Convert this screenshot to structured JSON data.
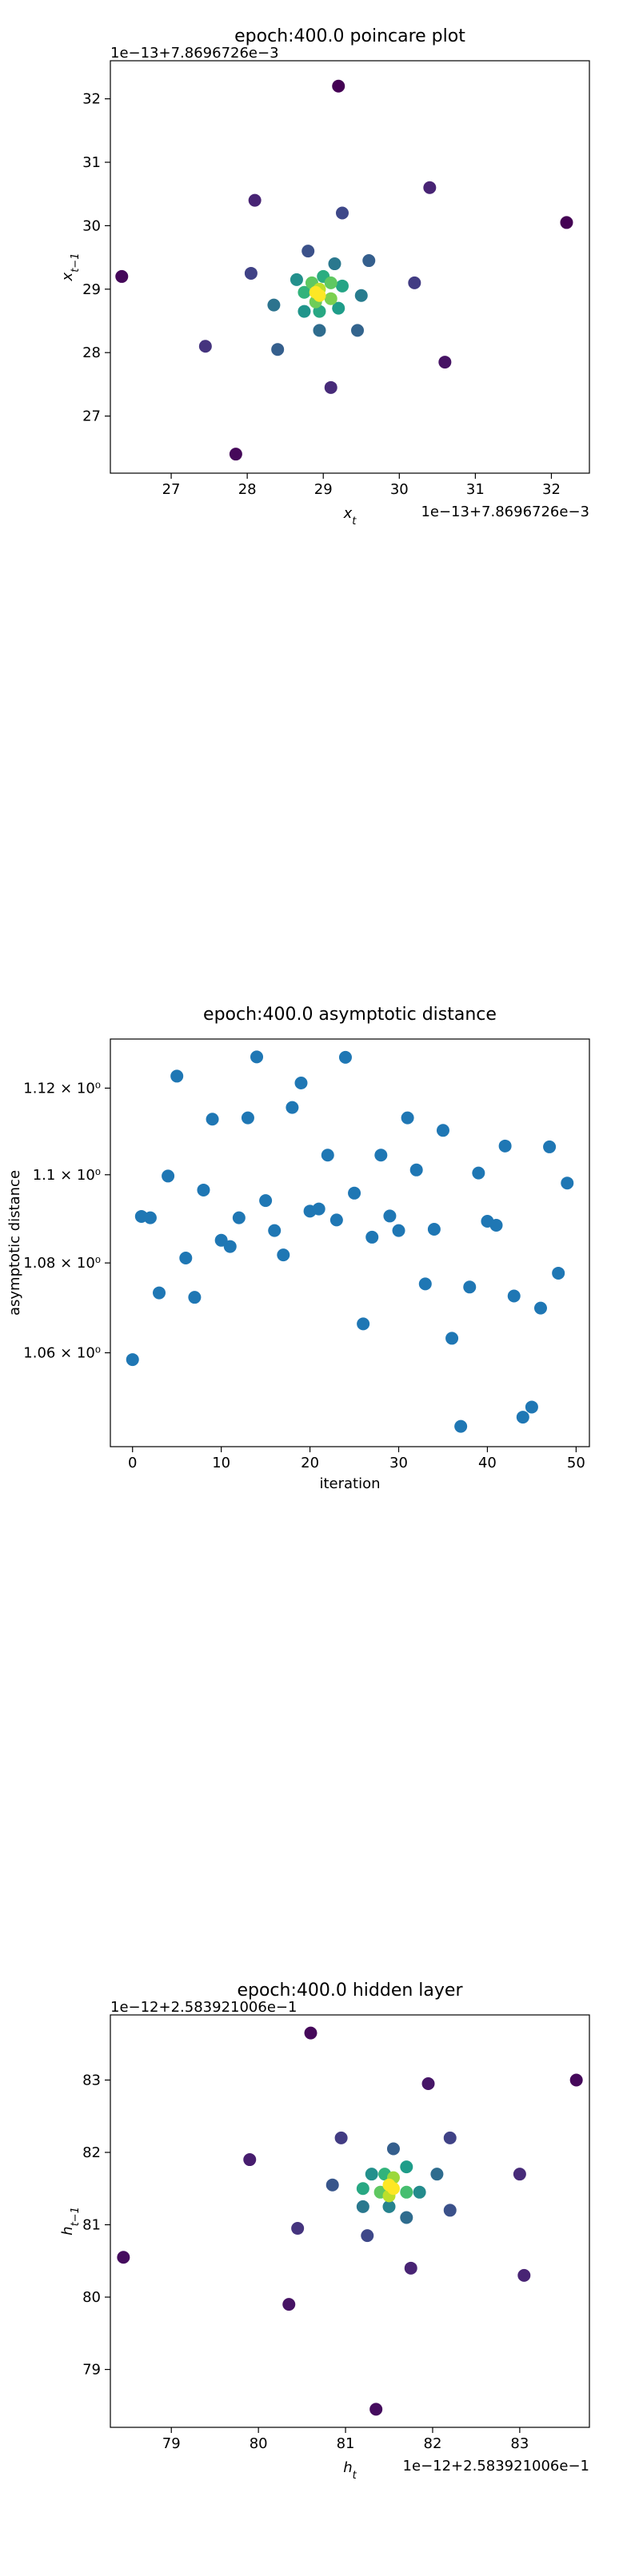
{
  "chart_data": [
    {
      "type": "scatter",
      "title": "epoch:400.0 poincare plot",
      "xlabel": "x_t",
      "ylabel": "x_{t−1}",
      "offset_x_text": "1e−13+7.8696726e−3",
      "offset_y_text": "1e−13+7.8696726e−3",
      "xlim": [
        26.2,
        32.5
      ],
      "ylim": [
        26.1,
        32.6
      ],
      "xticks": [
        27,
        28,
        29,
        30,
        31,
        32
      ],
      "yticks": [
        27,
        28,
        29,
        30,
        31,
        32
      ],
      "color_scale": "viridis (point density)",
      "points": [
        {
          "x": 29.2,
          "y": 32.2,
          "c": 0.0
        },
        {
          "x": 32.2,
          "y": 30.05,
          "c": 0.0
        },
        {
          "x": 26.35,
          "y": 29.2,
          "c": 0.02
        },
        {
          "x": 27.85,
          "y": 26.4,
          "c": 0.02
        },
        {
          "x": 30.6,
          "y": 27.85,
          "c": 0.05
        },
        {
          "x": 28.1,
          "y": 30.4,
          "c": 0.1
        },
        {
          "x": 30.4,
          "y": 30.6,
          "c": 0.1
        },
        {
          "x": 29.1,
          "y": 27.45,
          "c": 0.12
        },
        {
          "x": 27.45,
          "y": 28.1,
          "c": 0.15
        },
        {
          "x": 30.2,
          "y": 29.1,
          "c": 0.18
        },
        {
          "x": 28.05,
          "y": 29.25,
          "c": 0.2
        },
        {
          "x": 29.25,
          "y": 30.2,
          "c": 0.22
        },
        {
          "x": 28.8,
          "y": 29.6,
          "c": 0.25
        },
        {
          "x": 29.6,
          "y": 29.45,
          "c": 0.3
        },
        {
          "x": 28.4,
          "y": 28.05,
          "c": 0.3
        },
        {
          "x": 29.45,
          "y": 28.35,
          "c": 0.32
        },
        {
          "x": 28.95,
          "y": 28.35,
          "c": 0.35
        },
        {
          "x": 28.35,
          "y": 28.75,
          "c": 0.38
        },
        {
          "x": 29.15,
          "y": 29.4,
          "c": 0.4
        },
        {
          "x": 29.5,
          "y": 28.9,
          "c": 0.42
        },
        {
          "x": 28.65,
          "y": 29.15,
          "c": 0.5
        },
        {
          "x": 28.75,
          "y": 28.65,
          "c": 0.52
        },
        {
          "x": 29.2,
          "y": 28.7,
          "c": 0.55
        },
        {
          "x": 29.25,
          "y": 29.05,
          "c": 0.58
        },
        {
          "x": 28.95,
          "y": 28.65,
          "c": 0.6
        },
        {
          "x": 29.0,
          "y": 29.2,
          "c": 0.62
        },
        {
          "x": 28.75,
          "y": 28.95,
          "c": 0.65
        },
        {
          "x": 28.85,
          "y": 29.1,
          "c": 0.75
        },
        {
          "x": 29.1,
          "y": 29.1,
          "c": 0.75
        },
        {
          "x": 28.9,
          "y": 28.8,
          "c": 0.78
        },
        {
          "x": 29.1,
          "y": 28.85,
          "c": 0.8
        },
        {
          "x": 28.95,
          "y": 29.0,
          "c": 0.9
        },
        {
          "x": 28.9,
          "y": 28.95,
          "c": 1.0
        },
        {
          "x": 28.95,
          "y": 28.9,
          "c": 1.0
        }
      ]
    },
    {
      "type": "scatter",
      "title": "epoch:400.0 asymptotic distance",
      "xlabel": "iteration",
      "ylabel": "asymptotic distance",
      "yscale": "log",
      "xlim": [
        -2.5,
        51.5
      ],
      "ylim": [
        1.0395,
        1.1315
      ],
      "xticks": [
        0,
        10,
        20,
        30,
        40,
        50
      ],
      "yticks": [
        {
          "value": 1.06,
          "label": "1.06 × 10⁰"
        },
        {
          "value": 1.08,
          "label": "1.08 × 10⁰"
        },
        {
          "value": 1.1,
          "label": "1.1 × 10⁰"
        },
        {
          "value": 1.12,
          "label": "1.12 × 10⁰"
        }
      ],
      "color": "#1f77b4",
      "x": [
        0,
        1,
        2,
        3,
        4,
        5,
        6,
        7,
        8,
        9,
        10,
        11,
        12,
        13,
        14,
        15,
        16,
        17,
        18,
        19,
        20,
        21,
        22,
        23,
        24,
        25,
        26,
        27,
        28,
        29,
        30,
        31,
        32,
        33,
        34,
        35,
        36,
        37,
        38,
        39,
        40,
        41,
        42,
        43,
        44,
        45,
        46,
        47,
        48,
        49
      ],
      "y": [
        1.0585,
        1.0905,
        1.0902,
        1.0733,
        1.0997,
        1.1228,
        1.0811,
        1.0723,
        1.0965,
        1.1128,
        1.0851,
        1.0837,
        1.0902,
        1.1131,
        1.1273,
        1.0941,
        1.0873,
        1.0818,
        1.1155,
        1.1212,
        1.0917,
        1.0922,
        1.1045,
        1.0897,
        1.1272,
        1.0958,
        1.0664,
        1.0858,
        1.1045,
        1.0906,
        1.0873,
        1.1131,
        1.1011,
        1.0753,
        1.0876,
        1.1102,
        1.0632,
        1.0439,
        1.0746,
        1.1004,
        1.0894,
        1.0885,
        1.1066,
        1.0726,
        1.0459,
        1.0481,
        1.0699,
        1.1064,
        1.0777,
        1.0981
      ]
    },
    {
      "type": "scatter",
      "title": "epoch:400.0 hidden layer",
      "xlabel": "h_t",
      "ylabel": "h_{t−1}",
      "offset_x_text": "1e−12+2.583921006e−1",
      "offset_y_text": "1e−12+2.583921006e−1",
      "xlim": [
        78.3,
        83.8
      ],
      "ylim": [
        78.2,
        83.9
      ],
      "xticks": [
        79,
        80,
        81,
        82,
        83
      ],
      "yticks": [
        79,
        80,
        81,
        82,
        83
      ],
      "color_scale": "viridis (point density)",
      "points": [
        {
          "x": 80.6,
          "y": 83.65,
          "c": 0.02
        },
        {
          "x": 83.65,
          "y": 83.0,
          "c": 0.02
        },
        {
          "x": 78.45,
          "y": 80.55,
          "c": 0.03
        },
        {
          "x": 81.35,
          "y": 78.45,
          "c": 0.03
        },
        {
          "x": 80.35,
          "y": 79.9,
          "c": 0.05
        },
        {
          "x": 81.95,
          "y": 82.95,
          "c": 0.06
        },
        {
          "x": 79.9,
          "y": 81.9,
          "c": 0.08
        },
        {
          "x": 81.75,
          "y": 80.4,
          "c": 0.1
        },
        {
          "x": 83.05,
          "y": 80.3,
          "c": 0.1
        },
        {
          "x": 83.0,
          "y": 81.7,
          "c": 0.12
        },
        {
          "x": 80.45,
          "y": 80.95,
          "c": 0.15
        },
        {
          "x": 80.95,
          "y": 82.2,
          "c": 0.18
        },
        {
          "x": 82.2,
          "y": 82.2,
          "c": 0.2
        },
        {
          "x": 81.25,
          "y": 80.85,
          "c": 0.22
        },
        {
          "x": 82.2,
          "y": 81.2,
          "c": 0.25
        },
        {
          "x": 80.85,
          "y": 81.55,
          "c": 0.27
        },
        {
          "x": 81.55,
          "y": 82.05,
          "c": 0.3
        },
        {
          "x": 81.7,
          "y": 81.1,
          "c": 0.35
        },
        {
          "x": 82.05,
          "y": 81.7,
          "c": 0.35
        },
        {
          "x": 81.2,
          "y": 81.25,
          "c": 0.4
        },
        {
          "x": 81.5,
          "y": 81.25,
          "c": 0.45
        },
        {
          "x": 81.85,
          "y": 81.45,
          "c": 0.48
        },
        {
          "x": 81.3,
          "y": 81.7,
          "c": 0.5
        },
        {
          "x": 81.7,
          "y": 81.8,
          "c": 0.55
        },
        {
          "x": 81.2,
          "y": 81.5,
          "c": 0.6
        },
        {
          "x": 81.45,
          "y": 81.7,
          "c": 0.65
        },
        {
          "x": 81.7,
          "y": 81.45,
          "c": 0.7
        },
        {
          "x": 81.4,
          "y": 81.45,
          "c": 0.75
        },
        {
          "x": 81.55,
          "y": 81.65,
          "c": 0.85
        },
        {
          "x": 81.5,
          "y": 81.4,
          "c": 0.9
        },
        {
          "x": 81.55,
          "y": 81.5,
          "c": 1.0
        },
        {
          "x": 81.5,
          "y": 81.55,
          "c": 1.0
        }
      ]
    }
  ]
}
